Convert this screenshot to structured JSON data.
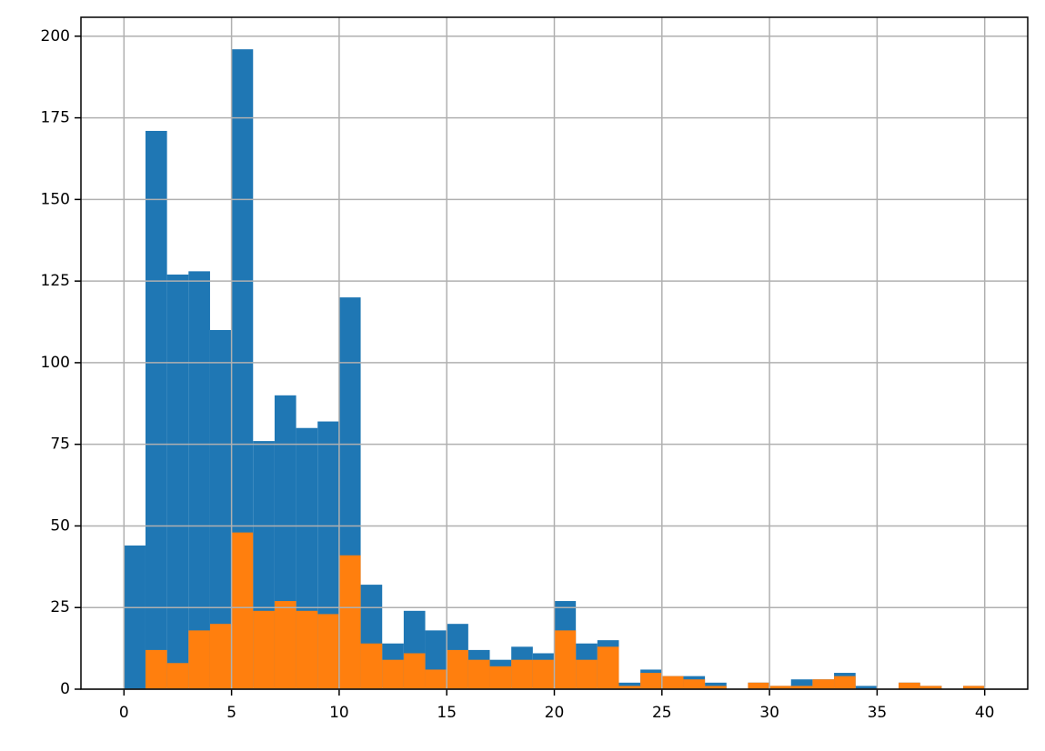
{
  "chart_data": {
    "type": "histogram",
    "bins": [
      0,
      1,
      2,
      3,
      4,
      5,
      6,
      7,
      8,
      9,
      10,
      11,
      12,
      13,
      14,
      15,
      16,
      17,
      18,
      19,
      20,
      21,
      22,
      23,
      24,
      25,
      26,
      27,
      28,
      29,
      30,
      31,
      32,
      33,
      34,
      35,
      36,
      37,
      38,
      39,
      40
    ],
    "series": [
      {
        "color": "#1f77b4",
        "values": [
          44,
          171,
          127,
          128,
          110,
          196,
          76,
          90,
          80,
          82,
          120,
          32,
          14,
          24,
          18,
          20,
          12,
          9,
          13,
          11,
          27,
          14,
          15,
          2,
          6,
          4,
          4,
          2,
          0,
          2,
          1,
          3,
          3,
          5,
          1,
          0,
          2,
          1,
          0,
          1
        ]
      },
      {
        "color": "#ff7f0e",
        "values": [
          0,
          12,
          8,
          18,
          20,
          48,
          24,
          27,
          24,
          23,
          41,
          14,
          9,
          11,
          6,
          12,
          9,
          7,
          9,
          9,
          18,
          9,
          13,
          1,
          5,
          4,
          3,
          1,
          0,
          2,
          1,
          1,
          3,
          4,
          0,
          0,
          2,
          1,
          0,
          1
        ]
      }
    ],
    "xlim": [
      -2,
      42
    ],
    "ylim": [
      0,
      205.8
    ],
    "xticks": [
      0,
      5,
      10,
      15,
      20,
      25,
      30,
      35,
      40
    ],
    "yticks": [
      0,
      25,
      50,
      75,
      100,
      125,
      150,
      175,
      200
    ],
    "grid": true
  }
}
